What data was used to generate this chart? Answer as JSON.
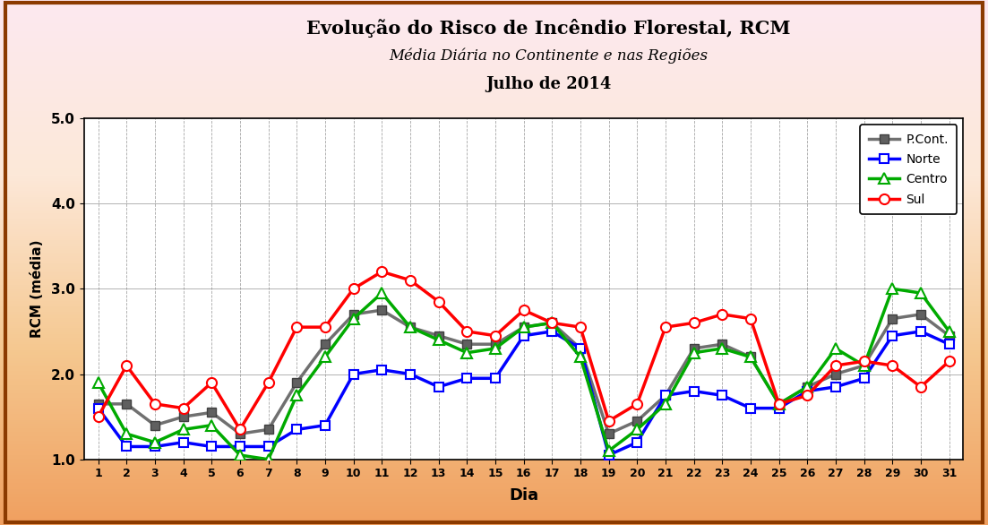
{
  "title_line1": "Evolução do Risco de Incêndio Florestal, RCM",
  "title_line2": "Média Diária no Continente e nas Regiões",
  "title_line3": "Julho de 2014",
  "xlabel": "Dia",
  "ylabel": "RCM (média)",
  "ylim": [
    1.0,
    5.0
  ],
  "yticks": [
    1.0,
    2.0,
    3.0,
    4.0,
    5.0
  ],
  "days": [
    1,
    2,
    3,
    4,
    5,
    6,
    7,
    8,
    9,
    10,
    11,
    12,
    13,
    14,
    15,
    16,
    17,
    18,
    19,
    20,
    21,
    22,
    23,
    24,
    25,
    26,
    27,
    28,
    29,
    30,
    31
  ],
  "pcont": [
    1.65,
    1.65,
    1.4,
    1.5,
    1.55,
    1.3,
    1.35,
    1.9,
    2.35,
    2.7,
    2.75,
    2.55,
    2.45,
    2.35,
    2.35,
    2.55,
    2.6,
    2.3,
    1.3,
    1.45,
    1.75,
    2.3,
    2.35,
    2.2,
    1.65,
    1.85,
    2.0,
    2.1,
    2.65,
    2.7,
    2.45
  ],
  "norte": [
    1.6,
    1.15,
    1.15,
    1.2,
    1.15,
    1.15,
    1.15,
    1.35,
    1.4,
    2.0,
    2.05,
    2.0,
    1.85,
    1.95,
    1.95,
    2.45,
    2.5,
    2.3,
    1.05,
    1.2,
    1.75,
    1.8,
    1.75,
    1.6,
    1.6,
    1.8,
    1.85,
    1.95,
    2.45,
    2.5,
    2.35
  ],
  "centro": [
    1.9,
    1.3,
    1.2,
    1.35,
    1.4,
    1.05,
    1.0,
    1.75,
    2.2,
    2.65,
    2.95,
    2.55,
    2.4,
    2.25,
    2.3,
    2.55,
    2.6,
    2.2,
    1.1,
    1.35,
    1.65,
    2.25,
    2.3,
    2.2,
    1.65,
    1.85,
    2.3,
    2.1,
    3.0,
    2.95,
    2.5
  ],
  "sul": [
    1.5,
    2.1,
    1.65,
    1.6,
    1.9,
    1.35,
    1.9,
    2.55,
    2.55,
    3.0,
    3.2,
    3.1,
    2.85,
    2.5,
    2.45,
    2.75,
    2.6,
    2.55,
    1.45,
    1.65,
    2.55,
    2.6,
    2.7,
    2.65,
    1.65,
    1.75,
    2.1,
    2.15,
    2.1,
    1.85,
    2.15
  ],
  "plot_bg": "#ffffff",
  "color_pcont": "#707070",
  "color_norte": "#0000ff",
  "color_centro": "#00aa00",
  "color_sul": "#ff0000",
  "border_color": "#8B4513",
  "grad_top": "#fdf0f0",
  "grad_mid": "#f5c8a0",
  "grad_bot": "#f0a060"
}
